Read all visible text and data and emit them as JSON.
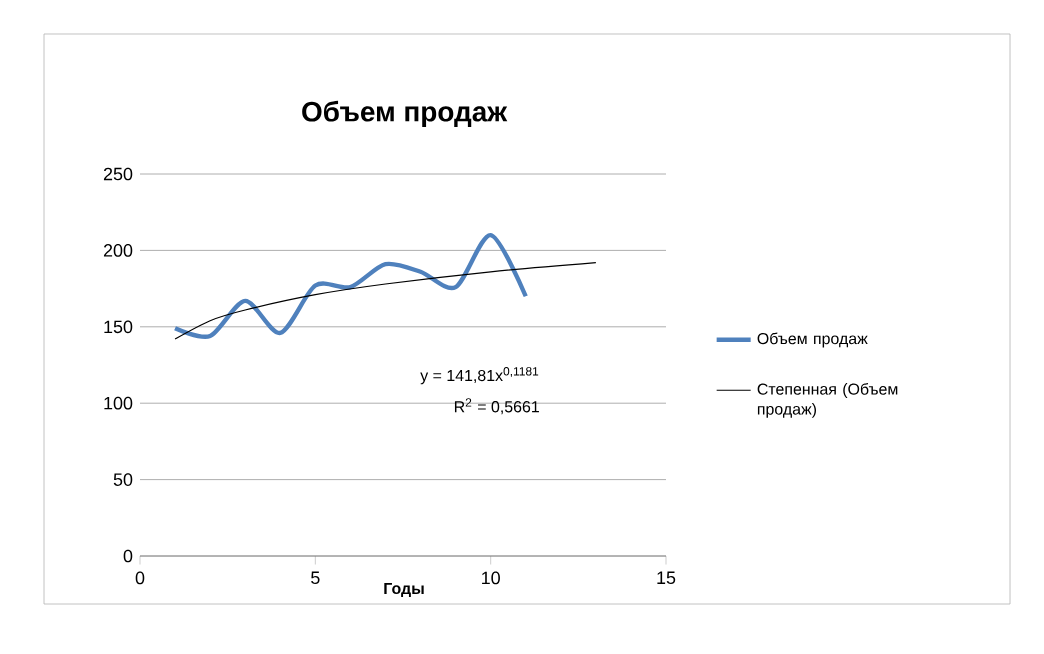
{
  "chart_data": {
    "type": "line",
    "title": "Объем продаж",
    "xlabel": "Годы",
    "xlim": [
      0,
      15
    ],
    "xticks": [
      0,
      5,
      10,
      15
    ],
    "ylim": [
      0,
      250
    ],
    "yticks": [
      0,
      50,
      100,
      150,
      200,
      250
    ],
    "grid": "y",
    "legend": "right",
    "marker": "none",
    "line_style": "solid",
    "series": [
      {
        "name": "Объем продаж",
        "color": "#4f81bd",
        "x": [
          1,
          2,
          3,
          4,
          5,
          6,
          7,
          8,
          9,
          10,
          11
        ],
        "values": [
          149,
          144,
          167,
          146,
          177,
          176,
          191,
          186,
          176,
          210,
          170
        ]
      },
      {
        "name": "Степенная (Объем продаж)",
        "color": "#000000",
        "x": [
          1,
          2,
          3,
          5,
          7,
          10,
          13
        ],
        "values": [
          142,
          154,
          161,
          171,
          178,
          186,
          192
        ]
      }
    ],
    "annotations": [
      "y = 141,81x$^{0,1181}$",
      "R$^{2}$ = 0,5661"
    ]
  }
}
